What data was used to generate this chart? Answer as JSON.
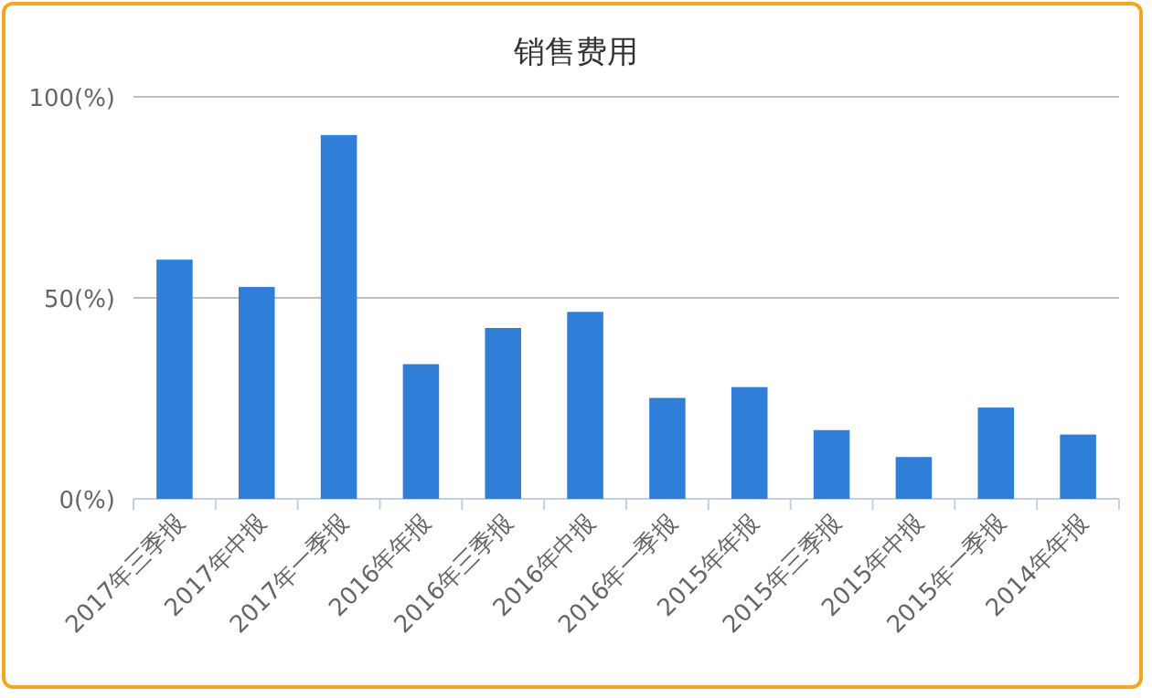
{
  "chart_data": {
    "type": "bar",
    "title": "销售费用",
    "categories": [
      "2017年三季报",
      "2017年中报",
      "2017年一季报",
      "2016年年报",
      "2016年三季报",
      "2016年中报",
      "2016年一季报",
      "2015年年报",
      "2015年三季报",
      "2015年中报",
      "2015年一季报",
      "2014年年报"
    ],
    "values": [
      59.5,
      52.7,
      90.5,
      33.5,
      42.5,
      46.5,
      25.1,
      27.8,
      17.1,
      10.4,
      22.7,
      16
    ],
    "color": "#2f7ed8",
    "ylim": [
      0,
      100
    ],
    "yticks": [
      {
        "value": 0,
        "label": "0(%)"
      },
      {
        "value": 50,
        "label": "50(%)"
      },
      {
        "value": 100,
        "label": "100(%)"
      }
    ],
    "grid": "y"
  }
}
